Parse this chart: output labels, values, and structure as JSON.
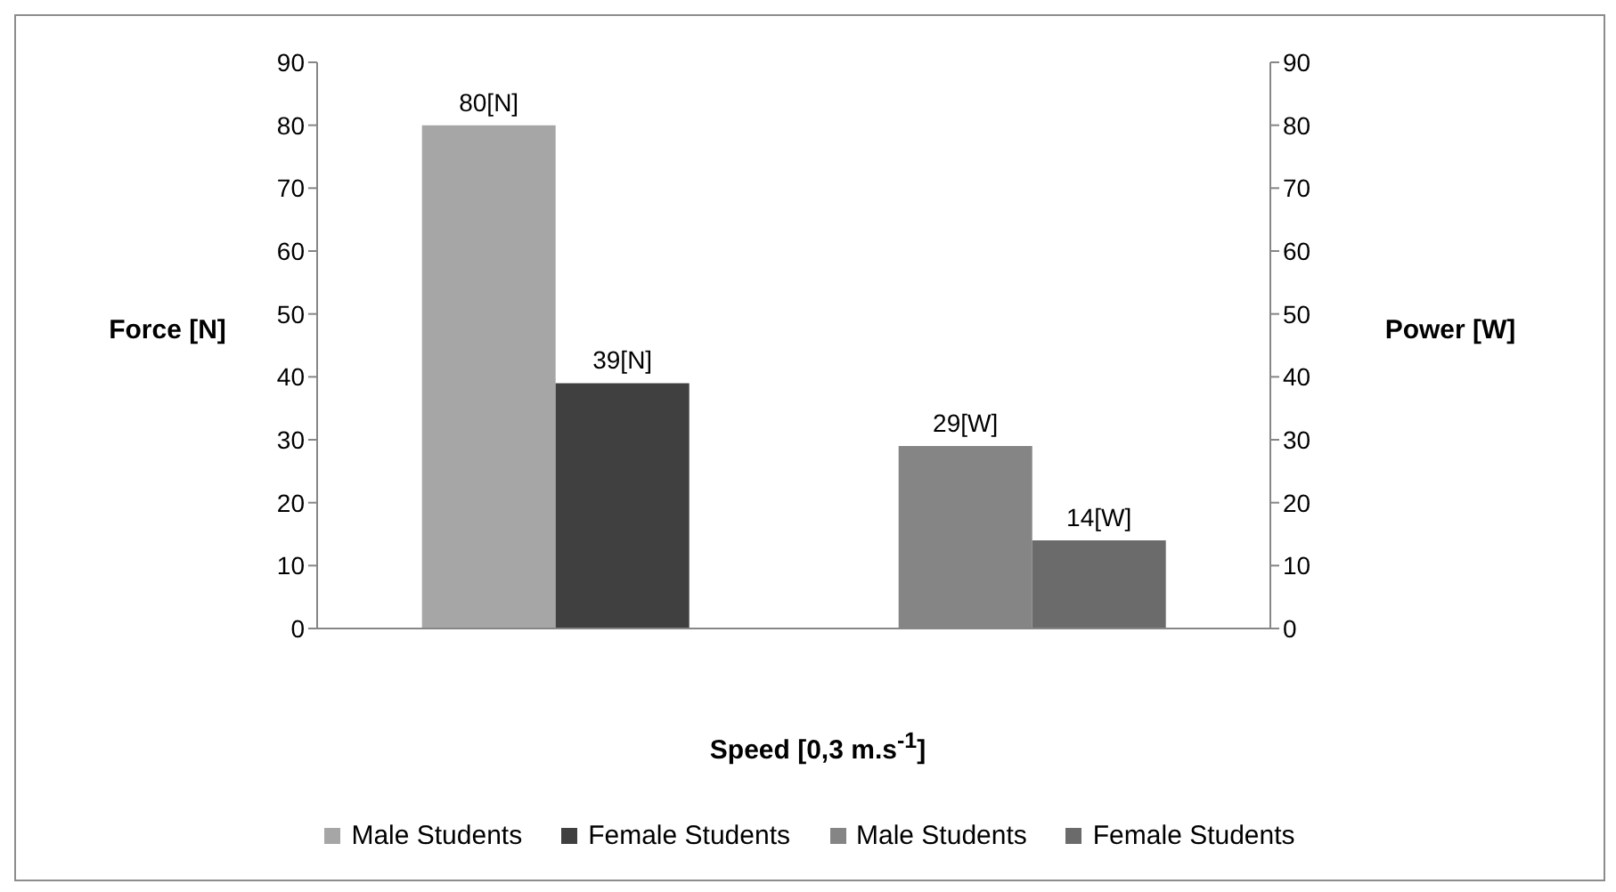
{
  "chart_data": {
    "type": "bar",
    "xlabel": "Speed [0,3 m.s$^{-1}$]",
    "ylabel": "Force [N]",
    "y2label": "Power [W]",
    "categories": [
      null,
      null
    ],
    "series": [
      {
        "name": "Male Students",
        "color": "#a6a6a6",
        "values": [
          80,
          null
        ],
        "value_labels": [
          "80[N]",
          null
        ]
      },
      {
        "name": "Female Students",
        "color": "#404040",
        "values": [
          39,
          null
        ],
        "value_labels": [
          "39[N]",
          null
        ]
      },
      {
        "name": "Male Students",
        "color": "#858585",
        "values": [
          null,
          29
        ],
        "value_labels": [
          null,
          "29[W]"
        ],
        "axis": "y2"
      },
      {
        "name": "Female Students",
        "color": "#6b6b6b",
        "values": [
          null,
          14
        ],
        "value_labels": [
          null,
          "14[W]"
        ],
        "axis": "y2"
      }
    ],
    "ylim": [
      0,
      90
    ],
    "yticks": [
      0,
      10,
      20,
      30,
      40,
      50,
      60,
      70,
      80,
      90
    ],
    "y2lim": [
      0,
      90
    ],
    "y2ticks": [
      0,
      10,
      20,
      30,
      40,
      50,
      60,
      70,
      80,
      90
    ],
    "grid": false,
    "legend": "bottom"
  }
}
